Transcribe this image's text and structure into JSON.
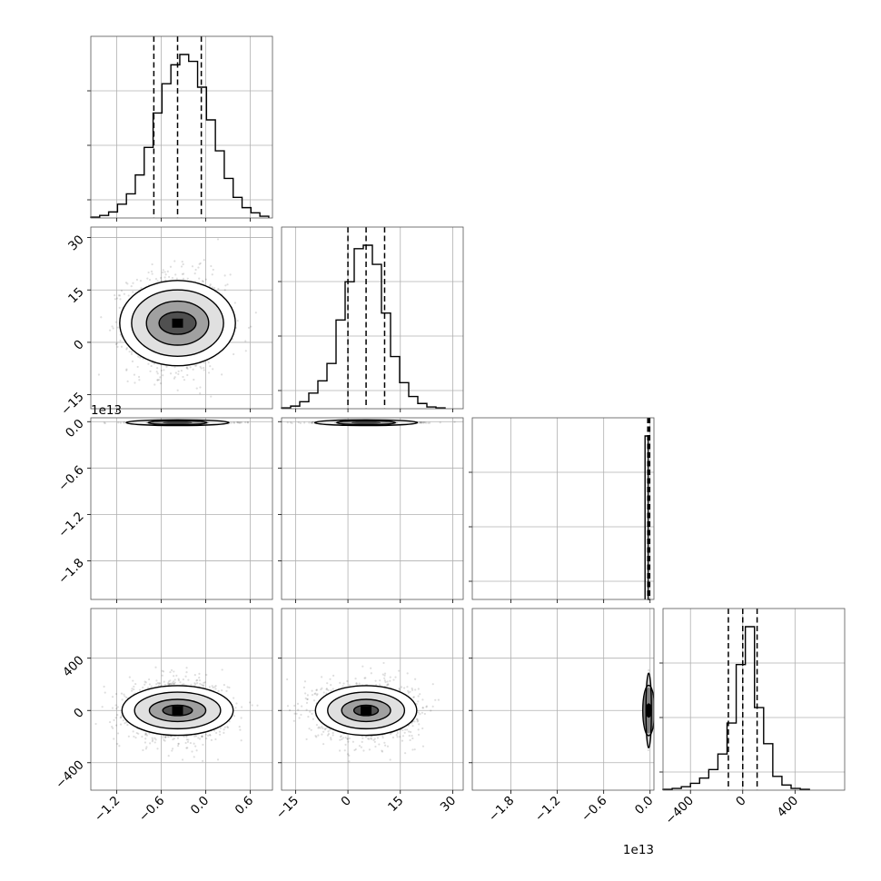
{
  "chart_data": {
    "type": "scatter",
    "description": "corner plot",
    "grid": true,
    "offset_text": "1e13",
    "parameters": [
      {
        "ticks": [
          -1.2,
          -0.6,
          0.0,
          0.6
        ],
        "tick_labels": [
          "−1.2",
          "−0.6",
          "0.0",
          "0.6"
        ],
        "range": [
          -1.55,
          0.9
        ],
        "quantiles": [
          -0.7,
          -0.38,
          -0.06
        ]
      },
      {
        "ticks": [
          -15,
          0,
          15,
          30
        ],
        "tick_labels": [
          "−15",
          "0",
          "15",
          "30"
        ],
        "range": [
          -19,
          33
        ],
        "quantiles": [
          0,
          5.2,
          10.5
        ]
      },
      {
        "ticks": [
          -1.8,
          -1.2,
          -0.6,
          0.0
        ],
        "tick_labels": [
          "−1.8",
          "−1.2",
          "−0.6",
          "0.0"
        ],
        "range": [
          -2.3,
          0.05
        ],
        "quantiles": [
          -0.03,
          -0.015,
          -0.005
        ],
        "offset": "1e13"
      },
      {
        "ticks": [
          -400,
          0,
          400
        ],
        "tick_labels": [
          "−400",
          "0",
          "400"
        ],
        "range": [
          -610,
          780
        ],
        "quantiles": [
          -110,
          0,
          110
        ]
      }
    ],
    "histograms": [
      {
        "edges": [
          -1.55,
          -1.43,
          -1.31,
          -1.19,
          -1.07,
          -0.95,
          -0.83,
          -0.71,
          -0.59,
          -0.47,
          -0.35,
          -0.23,
          -0.11,
          0.01,
          0.13,
          0.25,
          0.37,
          0.49,
          0.61,
          0.73,
          0.85
        ],
        "counts": [
          0.5,
          1.5,
          3.5,
          8,
          14,
          25,
          41,
          61,
          78,
          89,
          95,
          91,
          76,
          57,
          39,
          23,
          12,
          6,
          3,
          1
        ]
      },
      {
        "edges": [
          -19,
          -16.4,
          -13.8,
          -11.2,
          -8.6,
          -6,
          -3.4,
          -0.8,
          1.8,
          4.4,
          7,
          9.6,
          12.2,
          14.8,
          17.4,
          20,
          22.6,
          25.2,
          27.8
        ],
        "counts": [
          0.5,
          1.5,
          4,
          9,
          16,
          26,
          51,
          73,
          92,
          94,
          83,
          55,
          30,
          15,
          7,
          3,
          1,
          0.5
        ]
      },
      {
        "edges": [
          -0.065,
          -0.025,
          0.0
        ],
        "counts": [
          95,
          0
        ]
      },
      {
        "edges": [
          -610,
          -540,
          -470,
          -400,
          -330,
          -260,
          -190,
          -120,
          -50,
          20,
          90,
          160,
          230,
          300,
          370,
          440,
          510
        ],
        "counts": [
          0.5,
          1,
          2,
          4,
          7,
          12,
          21,
          39,
          73,
          95,
          48,
          27,
          8,
          3,
          1,
          0.5
        ]
      }
    ]
  }
}
